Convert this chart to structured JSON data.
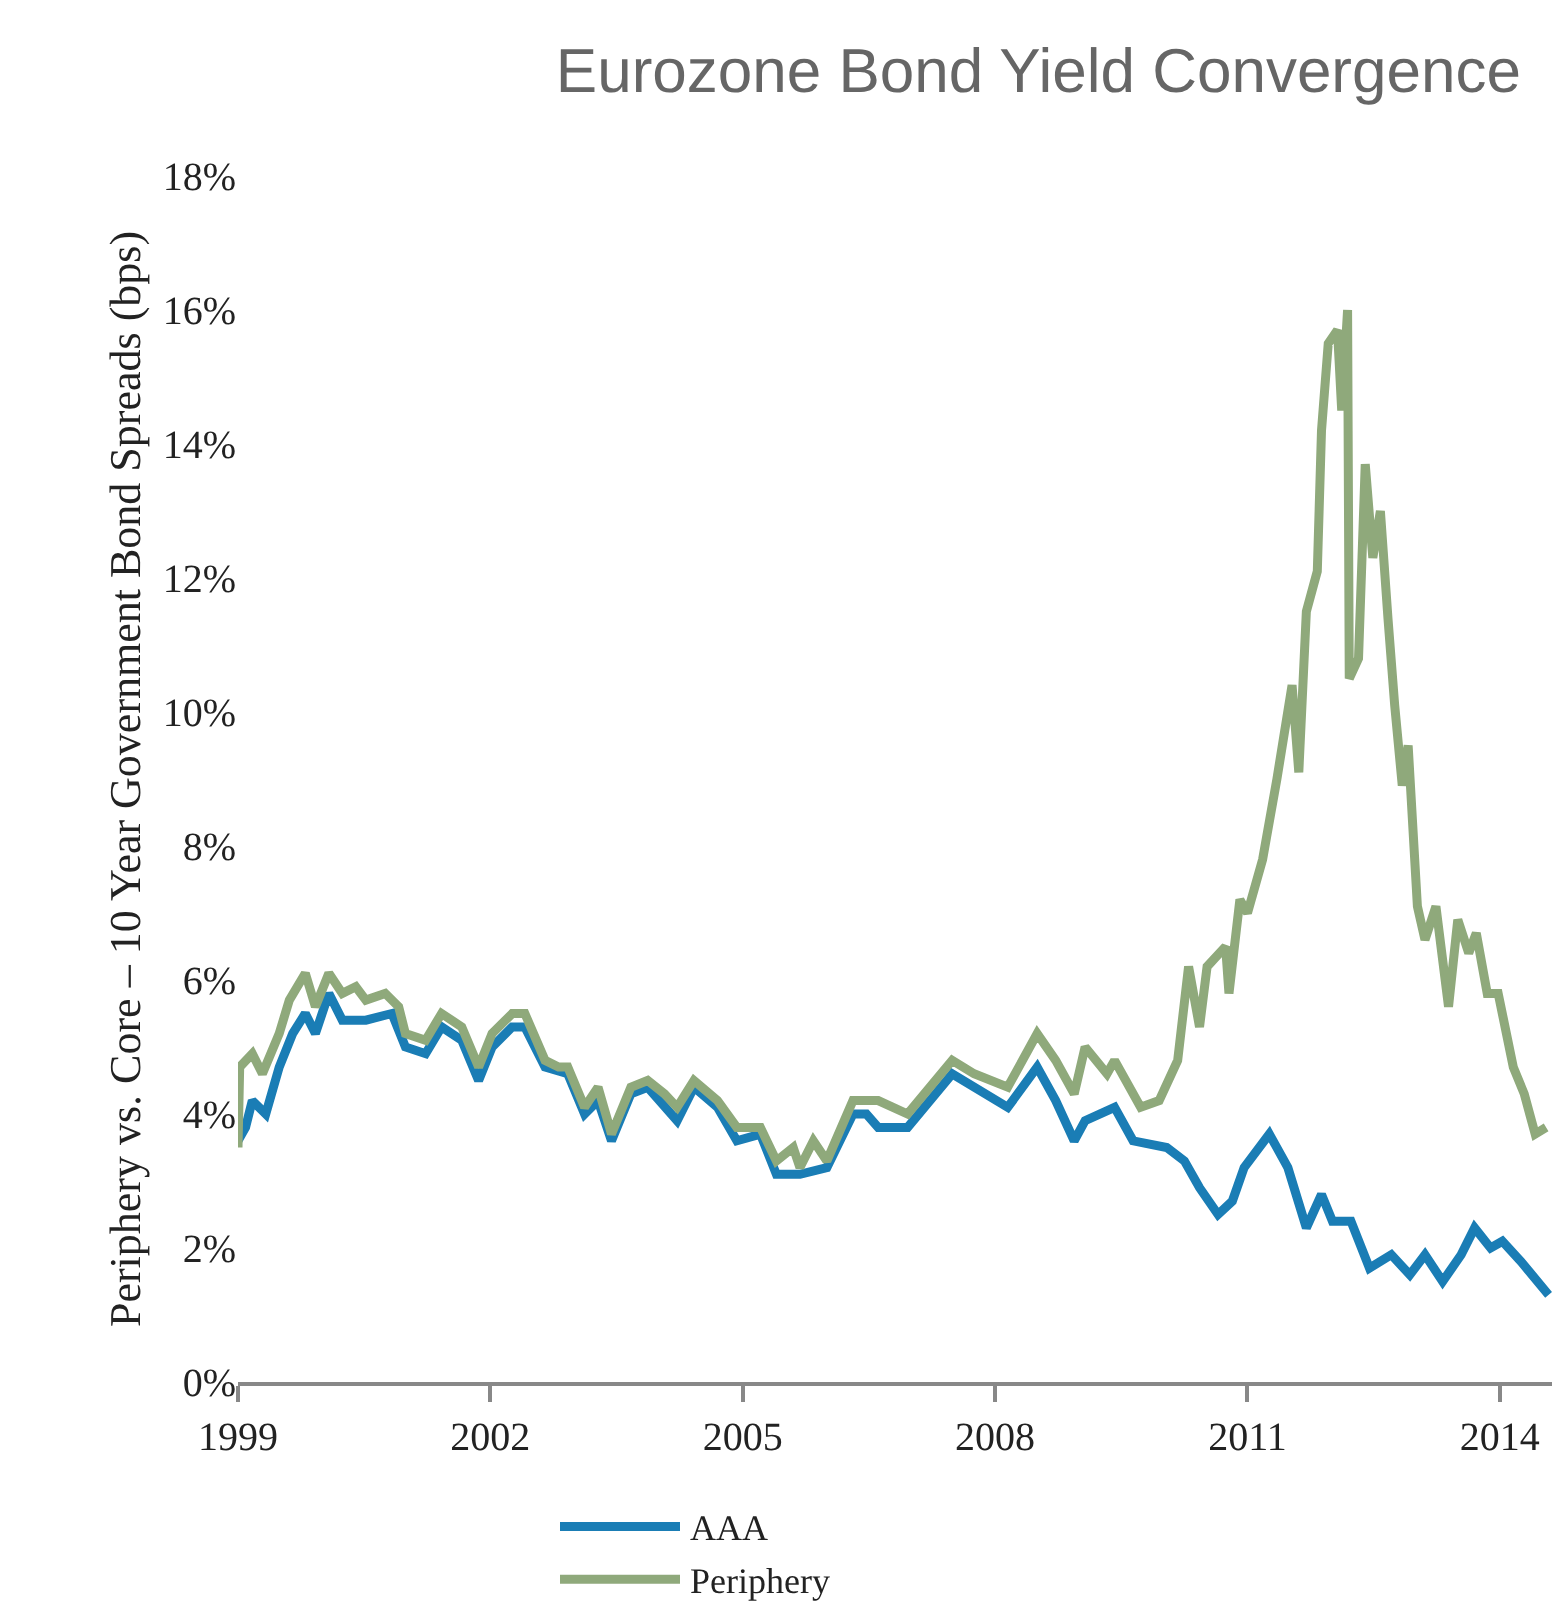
{
  "chart_data": {
    "type": "line",
    "title": "Eurozone Bond Yield Convergence",
    "ylabel": "Periphery vs. Core – 10 Year Government Bond Spreads (bps)",
    "xlim": [
      1999,
      2014.62
    ],
    "xticks": [
      1999,
      2002,
      2005,
      2008,
      2011,
      2014
    ],
    "ylim": [
      0,
      18
    ],
    "yticks": [
      {
        "value": 0,
        "label": "0%"
      },
      {
        "value": 2,
        "label": "2%"
      },
      {
        "value": 4,
        "label": "4%"
      },
      {
        "value": 6,
        "label": "6%"
      },
      {
        "value": 8,
        "label": "8%"
      },
      {
        "value": 10,
        "label": "10%"
      },
      {
        "value": 12,
        "label": "12%"
      },
      {
        "value": 14,
        "label": "14%"
      },
      {
        "value": 16,
        "label": "16%"
      },
      {
        "value": 18,
        "label": "18%"
      }
    ],
    "legend": "bottom",
    "marker": "none",
    "line_style": "solid",
    "series": [
      {
        "name": "AAA",
        "color": "#1a7db5",
        "x": [
          1999.0,
          1999.09,
          1999.17,
          1999.33,
          1999.49,
          1999.65,
          1999.8,
          1999.92,
          2000.08,
          2000.24,
          2000.52,
          2000.83,
          2000.99,
          2001.23,
          2001.42,
          2001.66,
          2001.86,
          2002.02,
          2002.26,
          2002.41,
          2002.65,
          2002.92,
          2003.12,
          2003.28,
          2003.44,
          2003.67,
          2003.87,
          2004.22,
          2004.42,
          2004.7,
          2004.93,
          2005.21,
          2005.4,
          2005.68,
          2006.0,
          2006.31,
          2006.47,
          2006.61,
          2006.96,
          2007.49,
          2008.15,
          2008.5,
          2008.72,
          2008.94,
          2009.07,
          2009.42,
          2009.64,
          2010.04,
          2010.25,
          2010.43,
          2010.65,
          2010.82,
          2010.96,
          2011.26,
          2011.48,
          2011.7,
          2011.88,
          2012.01,
          2012.23,
          2012.45,
          2012.71,
          2012.93,
          2013.11,
          2013.32,
          2013.54,
          2013.7,
          2013.89,
          2014.03,
          2014.25,
          2014.58
        ],
        "values": [
          3.6,
          3.8,
          4.2,
          4.0,
          4.7,
          5.2,
          5.5,
          5.2,
          5.8,
          5.4,
          5.4,
          5.5,
          5.0,
          4.9,
          5.3,
          5.1,
          4.5,
          5.0,
          5.3,
          5.3,
          4.7,
          4.6,
          4.0,
          4.2,
          3.6,
          4.3,
          4.4,
          3.9,
          4.4,
          4.1,
          3.6,
          3.7,
          3.1,
          3.1,
          3.2,
          4.0,
          4.0,
          3.8,
          3.8,
          4.6,
          4.1,
          4.7,
          4.2,
          3.6,
          3.9,
          4.1,
          3.6,
          3.5,
          3.3,
          2.9,
          2.5,
          2.7,
          3.2,
          3.7,
          3.2,
          2.3,
          2.8,
          2.4,
          2.4,
          1.7,
          1.9,
          1.6,
          1.9,
          1.5,
          1.9,
          2.3,
          2.0,
          2.1,
          1.8,
          1.3
        ]
      },
      {
        "name": "Periphery",
        "color": "#8fa97b",
        "x": [
          1999.0,
          1999.02,
          1999.17,
          1999.29,
          1999.49,
          1999.61,
          1999.8,
          1999.92,
          2000.08,
          2000.24,
          2000.4,
          2000.52,
          2000.75,
          2000.91,
          2000.99,
          2001.23,
          2001.42,
          2001.66,
          2001.86,
          2002.02,
          2002.26,
          2002.41,
          2002.65,
          2002.81,
          2002.92,
          2003.12,
          2003.28,
          2003.44,
          2003.67,
          2003.87,
          2004.07,
          2004.22,
          2004.42,
          2004.7,
          2004.93,
          2005.21,
          2005.4,
          2005.6,
          2005.68,
          2005.84,
          2006.0,
          2006.31,
          2006.47,
          2006.61,
          2006.96,
          2007.49,
          2007.75,
          2008.15,
          2008.5,
          2008.72,
          2008.94,
          2009.07,
          2009.33,
          2009.42,
          2009.73,
          2009.95,
          2010.17,
          2010.3,
          2010.43,
          2010.52,
          2010.74,
          2010.78,
          2010.91,
          2011.0,
          2011.18,
          2011.35,
          2011.53,
          2011.61,
          2011.7,
          2011.83,
          2011.88,
          2011.96,
          2012.07,
          2012.12,
          2012.19,
          2012.21,
          2012.32,
          2012.4,
          2012.49,
          2012.58,
          2012.67,
          2012.75,
          2012.84,
          2012.91,
          2013.02,
          2013.11,
          2013.24,
          2013.39,
          2013.5,
          2013.63,
          2013.72,
          2013.85,
          2013.98,
          2014.16,
          2014.29,
          2014.42,
          2014.55
        ],
        "values": [
          3.5,
          4.7,
          4.9,
          4.6,
          5.2,
          5.7,
          6.1,
          5.6,
          6.1,
          5.8,
          5.9,
          5.7,
          5.8,
          5.6,
          5.2,
          5.1,
          5.5,
          5.3,
          4.7,
          5.2,
          5.5,
          5.5,
          4.8,
          4.7,
          4.7,
          4.1,
          4.4,
          3.7,
          4.4,
          4.5,
          4.3,
          4.1,
          4.5,
          4.2,
          3.8,
          3.8,
          3.3,
          3.5,
          3.2,
          3.6,
          3.3,
          4.2,
          4.2,
          4.2,
          4.0,
          4.8,
          4.6,
          4.4,
          5.2,
          4.8,
          4.3,
          5.0,
          4.6,
          4.8,
          4.1,
          4.2,
          4.8,
          6.2,
          5.3,
          6.2,
          6.5,
          5.8,
          7.2,
          7.0,
          7.8,
          9.0,
          10.4,
          9.1,
          11.5,
          12.1,
          14.2,
          15.5,
          15.7,
          14.5,
          16.0,
          10.5,
          10.8,
          13.7,
          12.3,
          13.0,
          11.4,
          10.1,
          8.9,
          9.5,
          7.1,
          6.6,
          7.1,
          5.6,
          6.9,
          6.4,
          6.7,
          5.8,
          5.8,
          4.7,
          4.3,
          3.7,
          3.8
        ]
      }
    ]
  }
}
